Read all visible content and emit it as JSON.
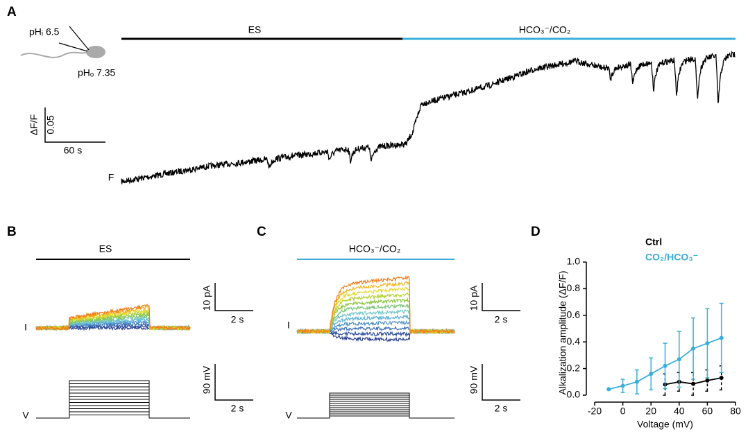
{
  "panels": {
    "a": {
      "label": "A",
      "bar_left": "ES",
      "bar_right": "HCO₃⁻/CO₂",
      "cartoon_ph_i": "pHᵢ 6.5",
      "cartoon_ph_o": "pHₒ 7.35",
      "scale_y": "ΔF/F",
      "scale_y_value": "0.05",
      "scale_x": "60 s",
      "trace_label": "F"
    },
    "b": {
      "label": "B",
      "bar": "ES",
      "current_label": "I",
      "voltage_label": "V",
      "current_scale": "10 pA",
      "current_time": "2 s",
      "voltage_scale": "90 mV",
      "voltage_time": "2 s"
    },
    "c": {
      "label": "C",
      "bar": "HCO₃⁻/CO₂",
      "current_label": "I",
      "voltage_label": "V",
      "current_scale": "10 pA",
      "current_time": "2 s",
      "voltage_scale": "90 mV",
      "voltage_time": "2 s"
    },
    "d": {
      "label": "D"
    }
  },
  "chart_data": {
    "type": "line",
    "x_label": "Voltage (mV)",
    "y_label": "Alkalization amplitude (ΔF/F)",
    "x": [
      -10,
      0,
      10,
      20,
      30,
      40,
      50,
      60,
      70
    ],
    "series": [
      {
        "name": "Ctrl",
        "color": "#000000",
        "values": [
          null,
          null,
          null,
          null,
          0.08,
          0.1,
          0.085,
          0.11,
          0.13
        ],
        "errors": [
          null,
          null,
          null,
          null,
          0.08,
          0.07,
          0.085,
          0.08,
          0.09
        ],
        "dashed_errors": true
      },
      {
        "name": "CO₂/HCO₃⁻",
        "color": "#3aaedb",
        "values": [
          0.045,
          0.07,
          0.1,
          0.16,
          0.22,
          0.27,
          0.35,
          0.39,
          0.43
        ],
        "errors": [
          0,
          0.05,
          0.09,
          0.12,
          0.17,
          0.21,
          0.23,
          0.26,
          0.26
        ],
        "dashed_errors": false
      }
    ],
    "xlim": [
      -20,
      80
    ],
    "xticks": [
      -20,
      0,
      20,
      40,
      60,
      80
    ],
    "ylim": [
      0,
      1
    ],
    "yticks": [
      {
        "value": 0,
        "label": "0.0"
      },
      {
        "value": 0.2,
        "label": "0.2"
      },
      {
        "value": 0.4,
        "label": "0.4"
      },
      {
        "value": 0.6,
        "label": "0.6"
      },
      {
        "value": 0.8,
        "label": "0.8"
      },
      {
        "value": 1,
        "label": "1.0"
      }
    ]
  }
}
